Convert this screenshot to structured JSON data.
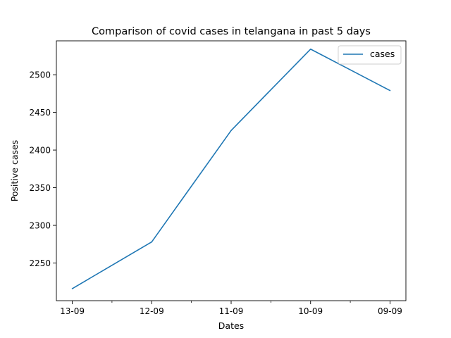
{
  "chart_data": {
    "type": "line",
    "title": "Comparison of covid cases in telangana in past 5 days",
    "xlabel": "Dates",
    "ylabel": "Positive cases",
    "categories": [
      "13-09",
      "12-09",
      "11-09",
      "10-09",
      "09-09"
    ],
    "series": [
      {
        "name": "cases",
        "values": [
          2216,
          2278,
          2426,
          2534,
          2479
        ],
        "color": "#1f77b4"
      }
    ],
    "ylim": [
      2200,
      2545
    ],
    "yticks": [
      2250,
      2300,
      2350,
      2400,
      2450,
      2500
    ],
    "minor_xticks": true,
    "grid": false,
    "legend_position": "upper right"
  }
}
